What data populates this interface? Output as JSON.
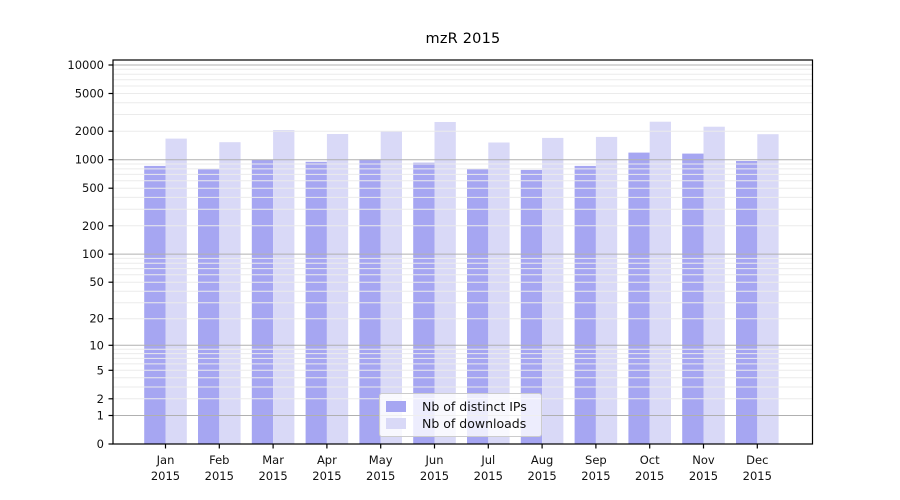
{
  "chart_data": {
    "type": "bar",
    "title": "mzR 2015",
    "xlabel": "",
    "ylabel": "",
    "yscale": "log1p",
    "ylim": [
      0,
      11300
    ],
    "grid": true,
    "legend_position": "lower center",
    "yticks": [
      10000,
      5000,
      2000,
      1000,
      500,
      200,
      100,
      50,
      20,
      10,
      5,
      2,
      1,
      0
    ],
    "categories": [
      "Jan 2015",
      "Feb 2015",
      "Mar 2015",
      "Apr 2015",
      "May 2015",
      "Jun 2015",
      "Jul 2015",
      "Aug 2015",
      "Sep 2015",
      "Oct 2015",
      "Nov 2015",
      "Dec 2015"
    ],
    "series": [
      {
        "name": "Nb of distinct IPs",
        "color": "#a6a6f2",
        "values": [
          860,
          800,
          1000,
          950,
          1010,
          930,
          800,
          780,
          860,
          1190,
          1160,
          970
        ]
      },
      {
        "name": "Nb of downloads",
        "color": "#d9d9f7",
        "values": [
          1670,
          1530,
          2060,
          1870,
          2010,
          2500,
          1520,
          1700,
          1740,
          2520,
          2230,
          1860
        ]
      }
    ]
  },
  "colors": {
    "major_grid": "#b0b0b0",
    "minor_grid": "#ebebeb",
    "axis": "#000000",
    "text": "#111111",
    "legend_border": "#cccccc"
  }
}
